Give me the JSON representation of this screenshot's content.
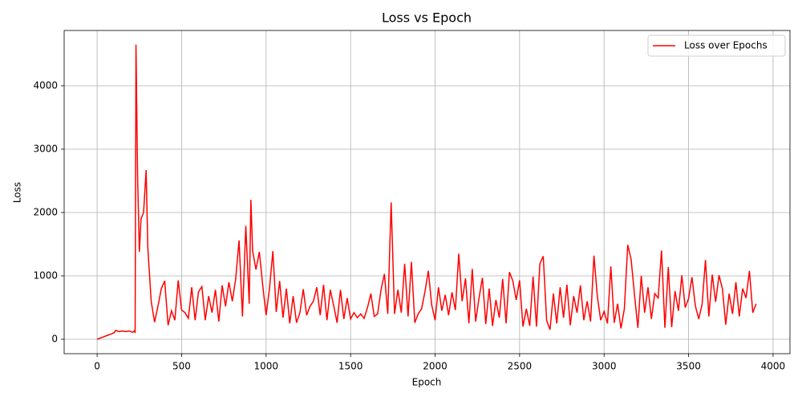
{
  "chart_data": {
    "type": "line",
    "title": "Loss vs Epoch",
    "x_label": "Epoch",
    "y_label": "Loss",
    "x": [
      0,
      20,
      40,
      60,
      80,
      100,
      110,
      130,
      150,
      170,
      190,
      210,
      220,
      225,
      230,
      240,
      250,
      260,
      275,
      290,
      300,
      320,
      340,
      360,
      380,
      400,
      420,
      440,
      460,
      480,
      500,
      520,
      540,
      560,
      580,
      600,
      620,
      640,
      660,
      680,
      700,
      720,
      740,
      760,
      780,
      800,
      820,
      840,
      860,
      880,
      900,
      910,
      920,
      940,
      960,
      980,
      1000,
      1020,
      1040,
      1060,
      1080,
      1100,
      1120,
      1140,
      1160,
      1180,
      1200,
      1220,
      1240,
      1260,
      1280,
      1300,
      1320,
      1340,
      1360,
      1380,
      1400,
      1420,
      1440,
      1460,
      1480,
      1500,
      1520,
      1540,
      1560,
      1580,
      1600,
      1620,
      1640,
      1660,
      1680,
      1700,
      1720,
      1740,
      1760,
      1780,
      1800,
      1820,
      1840,
      1860,
      1880,
      1900,
      1920,
      1940,
      1960,
      1980,
      2000,
      2020,
      2040,
      2060,
      2080,
      2100,
      2120,
      2140,
      2160,
      2180,
      2200,
      2220,
      2240,
      2260,
      2280,
      2300,
      2320,
      2340,
      2360,
      2380,
      2400,
      2420,
      2440,
      2460,
      2480,
      2500,
      2520,
      2540,
      2560,
      2580,
      2600,
      2620,
      2640,
      2660,
      2680,
      2700,
      2720,
      2740,
      2760,
      2780,
      2800,
      2820,
      2840,
      2860,
      2880,
      2900,
      2920,
      2940,
      2960,
      2980,
      3000,
      3020,
      3040,
      3060,
      3080,
      3100,
      3120,
      3140,
      3160,
      3180,
      3200,
      3220,
      3240,
      3260,
      3280,
      3300,
      3320,
      3340,
      3360,
      3380,
      3400,
      3420,
      3440,
      3460,
      3480,
      3500,
      3520,
      3540,
      3560,
      3580,
      3600,
      3620,
      3640,
      3660,
      3680,
      3700,
      3720,
      3740,
      3760,
      3780,
      3800,
      3820,
      3840,
      3860,
      3880,
      3900
    ],
    "series": [
      {
        "name": "Loss over Epochs",
        "color": "#ff0000",
        "values": [
          0,
          20,
          40,
          60,
          80,
          100,
          140,
          120,
          130,
          120,
          130,
          110,
          130,
          100,
          4650,
          2500,
          1380,
          1900,
          2000,
          2670,
          1450,
          600,
          270,
          520,
          800,
          920,
          220,
          450,
          300,
          930,
          460,
          420,
          330,
          820,
          300,
          750,
          830,
          300,
          680,
          420,
          780,
          280,
          850,
          520,
          900,
          600,
          950,
          1560,
          360,
          1790,
          560,
          2200,
          1400,
          1100,
          1380,
          850,
          380,
          800,
          1390,
          430,
          920,
          340,
          800,
          250,
          680,
          260,
          420,
          790,
          380,
          520,
          600,
          820,
          380,
          860,
          300,
          780,
          530,
          260,
          780,
          320,
          650,
          320,
          420,
          340,
          400,
          330,
          500,
          720,
          360,
          400,
          780,
          1030,
          400,
          2160,
          400,
          780,
          420,
          1190,
          360,
          1220,
          260,
          400,
          480,
          750,
          1080,
          540,
          300,
          820,
          450,
          700,
          380,
          740,
          460,
          1350,
          600,
          960,
          250,
          1110,
          280,
          650,
          970,
          240,
          800,
          210,
          620,
          340,
          950,
          250,
          1060,
          920,
          620,
          930,
          200,
          480,
          210,
          990,
          200,
          1190,
          1310,
          300,
          150,
          720,
          250,
          820,
          340,
          860,
          220,
          680,
          420,
          850,
          300,
          600,
          280,
          1320,
          680,
          300,
          440,
          250,
          1150,
          260,
          560,
          170,
          480,
          1490,
          1260,
          700,
          180,
          1000,
          420,
          820,
          320,
          720,
          650,
          1400,
          180,
          1140,
          190,
          760,
          450,
          1010,
          500,
          640,
          980,
          530,
          320,
          550,
          1250,
          360,
          1020,
          590,
          1010,
          800,
          230,
          720,
          400,
          900,
          360,
          800,
          650,
          1080,
          420,
          560
        ]
      }
    ],
    "xlim": [
      -195,
      4100
    ],
    "ylim": [
      -228,
      4873
    ],
    "xticks": [
      0,
      500,
      1000,
      1500,
      2000,
      2500,
      3000,
      3500,
      4000
    ],
    "yticks": [
      0,
      1000,
      2000,
      3000,
      4000
    ],
    "grid": true,
    "legend": "upper right"
  }
}
